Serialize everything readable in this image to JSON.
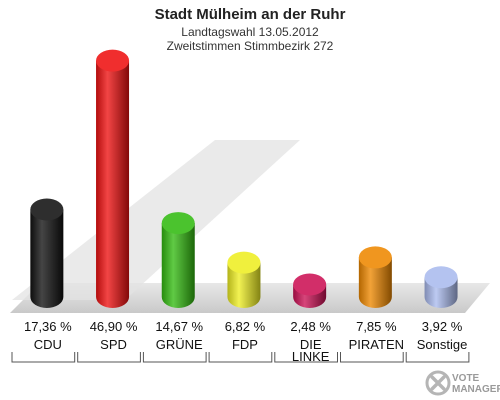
{
  "chart_data": {
    "type": "bar",
    "title": "Stadt Mülheim an der Ruhr",
    "subtitle_1": "Landtagswahl 13.05.2012",
    "subtitle_2": "Zweitstimmen Stimmbezirk 272",
    "categories": [
      "CDU",
      "SPD",
      "GRÜNE",
      "FDP",
      "DIE LINKE",
      "PIRATEN",
      "Sonstige"
    ],
    "category_lines": [
      [
        "CDU"
      ],
      [
        "SPD"
      ],
      [
        "GRÜNE"
      ],
      [
        "FDP"
      ],
      [
        "DIE",
        "LINKE"
      ],
      [
        "PIRATEN"
      ],
      [
        "Sonstige"
      ]
    ],
    "values": [
      17.36,
      46.9,
      14.67,
      6.82,
      2.48,
      7.85,
      3.92
    ],
    "value_labels": [
      "17,36 %",
      "46,90 %",
      "14,67 %",
      "6,82 %",
      "2,48 %",
      "7,85 %",
      "3,92 %"
    ],
    "colors": [
      "#111111",
      "#ee1111",
      "#33bb11",
      "#eeee22",
      "#cc1155",
      "#ee8800",
      "#aabbee"
    ],
    "ylim": [
      0,
      50
    ],
    "grid": false,
    "legend": "none"
  },
  "logo": {
    "line1": "VOTE",
    "line2": "MANAGER"
  }
}
